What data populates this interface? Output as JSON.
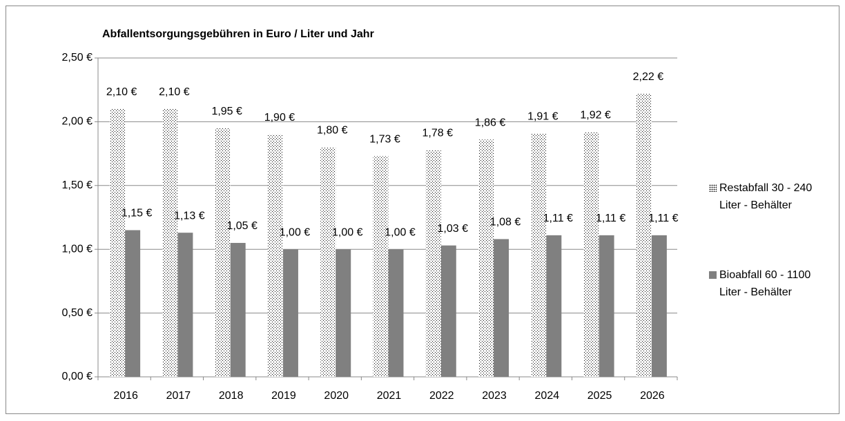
{
  "chart_data": {
    "type": "bar",
    "title": "Abfallentsorgungsgebühren in Euro / Liter und Jahr",
    "categories": [
      "2016",
      "2017",
      "2018",
      "2019",
      "2020",
      "2021",
      "2022",
      "2023",
      "2024",
      "2025",
      "2026"
    ],
    "series": [
      {
        "name": "Restabfall 30 - 240 Liter - Behälter",
        "color": "#000000",
        "values": [
          2.1,
          2.1,
          1.95,
          1.9,
          1.8,
          1.73,
          1.78,
          1.86,
          1.91,
          1.92,
          2.22
        ],
        "value_labels": [
          "2,10 €",
          "2,10 €",
          "1,95 €",
          "1,90 €",
          "1,80 €",
          "1,73 €",
          "1,78 €",
          "1,86 €",
          "1,91 €",
          "1,92 €",
          "2,22 €"
        ]
      },
      {
        "name": "Bioabfall 60 - 1100 Liter - Behälter",
        "color": "#808080",
        "values": [
          1.15,
          1.13,
          1.05,
          1.0,
          1.0,
          1.0,
          1.03,
          1.08,
          1.11,
          1.11,
          1.11
        ],
        "value_labels": [
          "1,15 €",
          "1,13 €",
          "1,05 €",
          "1,00 €",
          "1,00 €",
          "1,00 €",
          "1,03 €",
          "1,08 €",
          "1,11 €",
          "1,11 €",
          "1,11 €"
        ]
      }
    ],
    "ylim": [
      0,
      2.5
    ],
    "yticks": [
      {
        "value": 0,
        "label": "0,00 €"
      },
      {
        "value": 0.5,
        "label": "0,50 €"
      },
      {
        "value": 1,
        "label": "1,00 €"
      },
      {
        "value": 1.5,
        "label": "1,50 €"
      },
      {
        "value": 2,
        "label": "2,00 €"
      },
      {
        "value": 2.5,
        "label": "2,50 €"
      }
    ],
    "grid": true,
    "legend": "right"
  }
}
